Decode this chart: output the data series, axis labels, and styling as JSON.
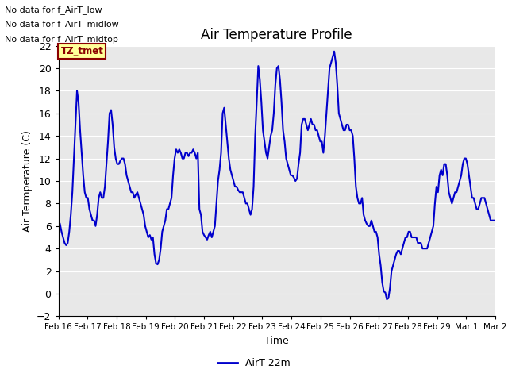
{
  "title": "Air Temperature Profile",
  "xlabel": "Time",
  "ylabel": "Air Termperature (C)",
  "ylim": [
    -2,
    22
  ],
  "yticks": [
    -2,
    0,
    2,
    4,
    6,
    8,
    10,
    12,
    14,
    16,
    18,
    20,
    22
  ],
  "line_color": "#0000cc",
  "line_width": 1.5,
  "bg_color": "#e8e8e8",
  "legend_label": "AirT 22m",
  "annotations_text": [
    "No data for f_AirT_low",
    "No data for f_AirT_midlow",
    "No data for f_AirT_midtop"
  ],
  "tz_label": "TZ_tmet",
  "x_tick_labels": [
    "Feb 16",
    "Feb 17",
    "Feb 18",
    "Feb 19",
    "Feb 20",
    "Feb 21",
    "Feb 22",
    "Feb 23",
    "Feb 24",
    "Feb 25",
    "Feb 26",
    "Feb 27",
    "Feb 28",
    "Feb 29",
    "Mar 1",
    "Mar 2"
  ],
  "time_series": [
    6.5,
    6.2,
    5.5,
    5.0,
    4.5,
    4.3,
    4.5,
    5.5,
    7.0,
    9.0,
    12.0,
    15.0,
    18.0,
    17.0,
    14.5,
    12.5,
    10.5,
    9.0,
    8.5,
    8.5,
    7.5,
    7.0,
    6.5,
    6.5,
    6.0,
    7.0,
    8.5,
    9.0,
    8.5,
    8.5,
    9.5,
    11.5,
    13.5,
    16.0,
    16.3,
    15.0,
    13.0,
    12.0,
    11.5,
    11.5,
    11.8,
    12.0,
    12.0,
    11.5,
    10.5,
    10.0,
    9.5,
    9.0,
    9.0,
    8.5,
    8.8,
    9.0,
    8.5,
    8.0,
    7.5,
    7.0,
    6.0,
    5.5,
    5.0,
    5.2,
    4.8,
    5.0,
    3.5,
    2.7,
    2.6,
    3.0,
    4.0,
    5.5,
    6.0,
    6.5,
    7.5,
    7.5,
    8.0,
    8.5,
    10.5,
    12.0,
    12.8,
    12.5,
    12.8,
    12.5,
    12.0,
    12.0,
    12.5,
    12.5,
    12.2,
    12.5,
    12.5,
    12.8,
    12.5,
    12.0,
    12.5,
    7.5,
    7.0,
    5.5,
    5.2,
    5.0,
    4.8,
    5.2,
    5.5,
    5.0,
    5.5,
    6.0,
    8.0,
    10.0,
    11.0,
    12.5,
    16.0,
    16.5,
    15.0,
    13.5,
    12.0,
    11.0,
    10.5,
    10.0,
    9.5,
    9.5,
    9.2,
    9.0,
    9.0,
    9.0,
    8.5,
    8.0,
    8.0,
    7.5,
    7.0,
    7.5,
    9.5,
    14.0,
    17.0,
    20.2,
    19.0,
    17.0,
    14.5,
    13.5,
    12.5,
    12.0,
    13.0,
    14.0,
    14.5,
    16.0,
    18.5,
    20.0,
    20.2,
    19.0,
    17.0,
    14.5,
    13.5,
    12.0,
    11.5,
    11.0,
    10.5,
    10.5,
    10.3,
    10.0,
    10.2,
    11.5,
    12.5,
    15.0,
    15.5,
    15.5,
    15.0,
    14.5,
    15.0,
    15.5,
    15.0,
    15.0,
    14.5,
    14.5,
    14.0,
    13.5,
    13.5,
    12.5,
    14.0,
    16.0,
    18.0,
    20.0,
    20.5,
    21.0,
    21.5,
    20.5,
    18.5,
    16.0,
    15.5,
    15.0,
    14.5,
    14.5,
    15.0,
    15.0,
    14.5,
    14.5,
    14.0,
    12.0,
    9.5,
    8.5,
    8.0,
    8.0,
    8.5,
    7.0,
    6.5,
    6.2,
    6.0,
    6.0,
    6.5,
    6.0,
    5.5,
    5.5,
    5.0,
    3.5,
    2.5,
    1.0,
    0.2,
    0.1,
    -0.5,
    -0.4,
    0.5,
    2.0,
    2.5,
    3.0,
    3.5,
    3.8,
    3.8,
    3.5,
    4.0,
    4.5,
    5.0,
    5.0,
    5.5,
    5.5,
    5.0,
    5.0,
    5.0,
    5.0,
    4.5,
    4.5,
    4.5,
    4.0,
    4.0,
    4.0,
    4.0,
    4.5,
    5.0,
    5.5,
    6.0,
    8.0,
    9.5,
    9.0,
    10.5,
    11.0,
    10.5,
    11.5,
    11.5,
    10.5,
    9.0,
    8.5,
    8.0,
    8.5,
    9.0,
    9.0,
    9.5,
    10.0,
    10.5,
    11.5,
    12.0,
    12.0,
    11.5,
    10.5,
    9.5,
    8.5,
    8.5,
    8.0,
    7.5,
    7.5,
    8.0,
    8.5,
    8.5,
    8.5,
    8.0,
    7.5,
    7.0,
    6.5,
    6.5,
    6.5,
    6.5
  ]
}
